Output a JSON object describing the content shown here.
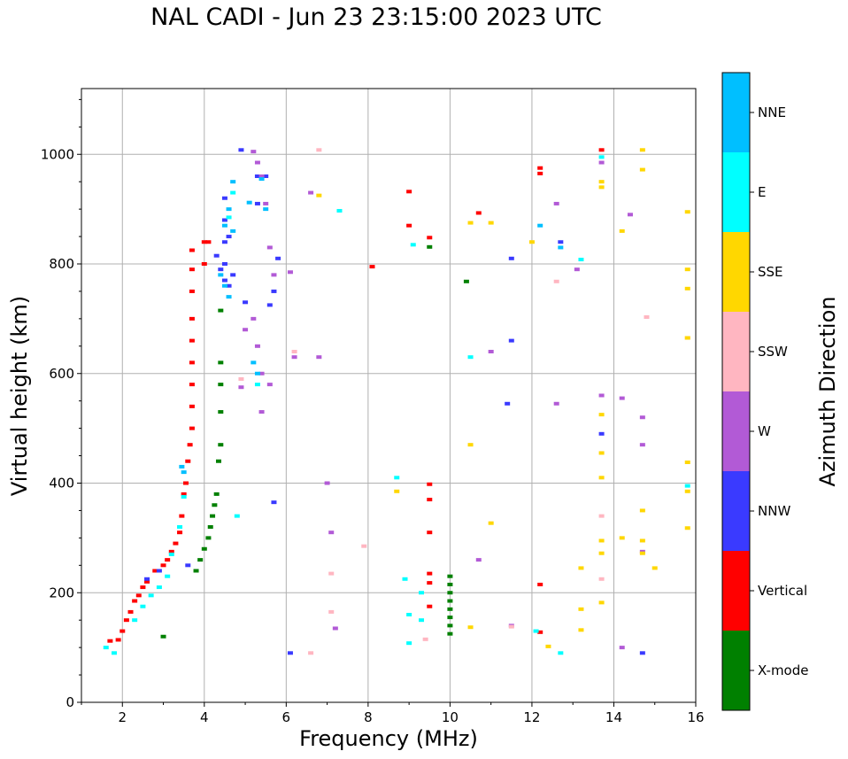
{
  "chart_data": {
    "type": "scatter",
    "title": "NAL CADI - Jun 23 23:15:00 2023 UTC",
    "xlabel": "Frequency (MHz)",
    "ylabel": "Virtual height (km)",
    "xlim": [
      1,
      16
    ],
    "ylim": [
      0,
      1120
    ],
    "xticks": [
      2,
      4,
      6,
      8,
      10,
      12,
      14,
      16
    ],
    "yticks": [
      0,
      200,
      400,
      600,
      800,
      1000
    ],
    "grid": true,
    "colorbar": {
      "label": "Azimuth Direction",
      "categories": [
        {
          "name": "X-mode",
          "color": "#008000"
        },
        {
          "name": "Vertical",
          "color": "#ff0000"
        },
        {
          "name": "NNW",
          "color": "#3a3aff"
        },
        {
          "name": "W",
          "color": "#b25ad6"
        },
        {
          "name": "SSW",
          "color": "#ffb6c1"
        },
        {
          "name": "SSE",
          "color": "#ffd700"
        },
        {
          "name": "E",
          "color": "#00ffff"
        },
        {
          "name": "NNE",
          "color": "#00bfff"
        }
      ]
    },
    "series": [
      {
        "name": "X-mode",
        "points": [
          [
            3.0,
            120
          ],
          [
            3.8,
            240
          ],
          [
            3.9,
            260
          ],
          [
            4.0,
            280
          ],
          [
            4.1,
            300
          ],
          [
            4.15,
            320
          ],
          [
            4.2,
            340
          ],
          [
            4.25,
            360
          ],
          [
            4.3,
            380
          ],
          [
            4.35,
            440
          ],
          [
            4.4,
            470
          ],
          [
            4.4,
            530
          ],
          [
            4.4,
            580
          ],
          [
            4.4,
            620
          ],
          [
            4.4,
            715
          ],
          [
            10.0,
            125
          ],
          [
            10.0,
            140
          ],
          [
            10.0,
            155
          ],
          [
            10.0,
            170
          ],
          [
            10.0,
            185
          ],
          [
            10.0,
            200
          ],
          [
            10.0,
            215
          ],
          [
            10.0,
            230
          ],
          [
            10.4,
            768
          ],
          [
            9.5,
            831
          ]
        ]
      },
      {
        "name": "Vertical",
        "points": [
          [
            1.7,
            112
          ],
          [
            1.9,
            114
          ],
          [
            2.0,
            130
          ],
          [
            2.1,
            150
          ],
          [
            2.2,
            165
          ],
          [
            2.3,
            185
          ],
          [
            2.4,
            195
          ],
          [
            2.5,
            210
          ],
          [
            2.6,
            220
          ],
          [
            2.8,
            240
          ],
          [
            3.0,
            250
          ],
          [
            3.1,
            260
          ],
          [
            3.2,
            275
          ],
          [
            3.3,
            290
          ],
          [
            3.4,
            310
          ],
          [
            3.45,
            340
          ],
          [
            3.5,
            380
          ],
          [
            3.55,
            400
          ],
          [
            3.6,
            440
          ],
          [
            3.65,
            470
          ],
          [
            3.7,
            500
          ],
          [
            3.7,
            540
          ],
          [
            3.7,
            580
          ],
          [
            3.7,
            620
          ],
          [
            3.7,
            660
          ],
          [
            3.7,
            700
          ],
          [
            3.7,
            750
          ],
          [
            3.7,
            790
          ],
          [
            3.7,
            825
          ],
          [
            4.0,
            800
          ],
          [
            4.0,
            840
          ],
          [
            4.1,
            840
          ],
          [
            8.1,
            795
          ],
          [
            9.0,
            870
          ],
          [
            9.0,
            932
          ],
          [
            9.5,
            848
          ],
          [
            9.5,
            370
          ],
          [
            9.5,
            398
          ],
          [
            9.5,
            310
          ],
          [
            9.5,
            235
          ],
          [
            9.5,
            218
          ],
          [
            9.5,
            175
          ],
          [
            10.7,
            893
          ],
          [
            12.2,
            965
          ],
          [
            12.2,
            975
          ],
          [
            12.2,
            215
          ],
          [
            12.2,
            128
          ],
          [
            13.7,
            1008
          ]
        ]
      },
      {
        "name": "NNW",
        "points": [
          [
            2.6,
            225
          ],
          [
            2.9,
            240
          ],
          [
            3.6,
            250
          ],
          [
            4.3,
            815
          ],
          [
            4.4,
            790
          ],
          [
            4.5,
            770
          ],
          [
            4.6,
            760
          ],
          [
            4.5,
            800
          ],
          [
            4.5,
            840
          ],
          [
            4.5,
            880
          ],
          [
            4.5,
            920
          ],
          [
            4.6,
            850
          ],
          [
            4.7,
            780
          ],
          [
            5.0,
            730
          ],
          [
            5.3,
            910
          ],
          [
            5.3,
            960
          ],
          [
            5.5,
            960
          ],
          [
            5.6,
            725
          ],
          [
            5.7,
            750
          ],
          [
            5.8,
            810
          ],
          [
            5.7,
            365
          ],
          [
            6.1,
            90
          ],
          [
            11.4,
            545
          ],
          [
            11.5,
            810
          ],
          [
            11.5,
            660
          ],
          [
            12.7,
            840
          ],
          [
            13.7,
            490
          ],
          [
            14.7,
            90
          ],
          [
            4.9,
            1008
          ]
        ]
      },
      {
        "name": "W",
        "points": [
          [
            5.2,
            1005
          ],
          [
            5.3,
            985
          ],
          [
            5.4,
            960
          ],
          [
            5.5,
            910
          ],
          [
            5.6,
            830
          ],
          [
            5.7,
            780
          ],
          [
            5.2,
            700
          ],
          [
            5.3,
            650
          ],
          [
            5.4,
            600
          ],
          [
            5.6,
            580
          ],
          [
            5.4,
            530
          ],
          [
            5.0,
            680
          ],
          [
            4.9,
            575
          ],
          [
            6.1,
            785
          ],
          [
            6.2,
            630
          ],
          [
            6.6,
            930
          ],
          [
            6.8,
            630
          ],
          [
            7.0,
            400
          ],
          [
            7.1,
            310
          ],
          [
            7.2,
            135
          ],
          [
            10.7,
            260
          ],
          [
            11.0,
            640
          ],
          [
            11.5,
            140
          ],
          [
            12.6,
            545
          ],
          [
            12.6,
            910
          ],
          [
            13.1,
            790
          ],
          [
            13.7,
            560
          ],
          [
            13.7,
            985
          ],
          [
            14.2,
            555
          ],
          [
            14.2,
            100
          ],
          [
            14.4,
            890
          ],
          [
            14.7,
            520
          ],
          [
            14.7,
            470
          ],
          [
            14.7,
            275
          ]
        ]
      },
      {
        "name": "SSW",
        "points": [
          [
            4.9,
            590
          ],
          [
            6.2,
            640
          ],
          [
            6.6,
            90
          ],
          [
            6.8,
            1008
          ],
          [
            7.1,
            235
          ],
          [
            7.1,
            165
          ],
          [
            7.9,
            285
          ],
          [
            9.4,
            115
          ],
          [
            11.5,
            138
          ],
          [
            12.6,
            768
          ],
          [
            13.7,
            340
          ],
          [
            13.7,
            225
          ],
          [
            14.8,
            703
          ],
          [
            15.8,
            665
          ]
        ]
      },
      {
        "name": "SSE",
        "points": [
          [
            6.8,
            925
          ],
          [
            8.7,
            385
          ],
          [
            10.5,
            875
          ],
          [
            10.5,
            470
          ],
          [
            10.5,
            137
          ],
          [
            11.0,
            875
          ],
          [
            11.0,
            327
          ],
          [
            12.0,
            840
          ],
          [
            12.4,
            102
          ],
          [
            13.2,
            245
          ],
          [
            13.2,
            170
          ],
          [
            13.2,
            132
          ],
          [
            13.7,
            950
          ],
          [
            13.7,
            940
          ],
          [
            13.7,
            525
          ],
          [
            13.7,
            455
          ],
          [
            13.7,
            410
          ],
          [
            13.7,
            295
          ],
          [
            13.7,
            272
          ],
          [
            13.7,
            182
          ],
          [
            14.2,
            860
          ],
          [
            14.2,
            300
          ],
          [
            14.7,
            1008
          ],
          [
            14.7,
            972
          ],
          [
            14.7,
            350
          ],
          [
            14.7,
            295
          ],
          [
            14.7,
            272
          ],
          [
            15.0,
            245
          ],
          [
            15.8,
            895
          ],
          [
            15.8,
            790
          ],
          [
            15.8,
            755
          ],
          [
            15.8,
            665
          ],
          [
            15.8,
            438
          ],
          [
            15.8,
            385
          ],
          [
            15.8,
            318
          ]
        ]
      },
      {
        "name": "E",
        "points": [
          [
            1.6,
            100
          ],
          [
            1.8,
            90
          ],
          [
            2.3,
            150
          ],
          [
            2.5,
            175
          ],
          [
            2.7,
            195
          ],
          [
            2.9,
            210
          ],
          [
            3.1,
            230
          ],
          [
            3.2,
            270
          ],
          [
            3.4,
            320
          ],
          [
            3.5,
            375
          ],
          [
            4.6,
            885
          ],
          [
            4.7,
            930
          ],
          [
            4.8,
            340
          ],
          [
            5.3,
            580
          ],
          [
            7.3,
            897
          ],
          [
            8.7,
            410
          ],
          [
            8.9,
            225
          ],
          [
            9.0,
            160
          ],
          [
            9.0,
            108
          ],
          [
            9.1,
            835
          ],
          [
            9.3,
            150
          ],
          [
            9.3,
            200
          ],
          [
            10.5,
            630
          ],
          [
            12.1,
            130
          ],
          [
            12.7,
            90
          ],
          [
            13.2,
            808
          ],
          [
            13.7,
            995
          ],
          [
            15.8,
            395
          ]
        ]
      },
      {
        "name": "NNE",
        "points": [
          [
            3.45,
            430
          ],
          [
            3.5,
            420
          ],
          [
            4.4,
            780
          ],
          [
            4.5,
            760
          ],
          [
            4.6,
            740
          ],
          [
            4.7,
            860
          ],
          [
            4.6,
            900
          ],
          [
            4.5,
            870
          ],
          [
            4.7,
            950
          ],
          [
            5.1,
            912
          ],
          [
            5.4,
            955
          ],
          [
            5.5,
            900
          ],
          [
            5.2,
            620
          ],
          [
            5.3,
            600
          ],
          [
            12.2,
            870
          ],
          [
            12.7,
            830
          ]
        ]
      }
    ]
  }
}
